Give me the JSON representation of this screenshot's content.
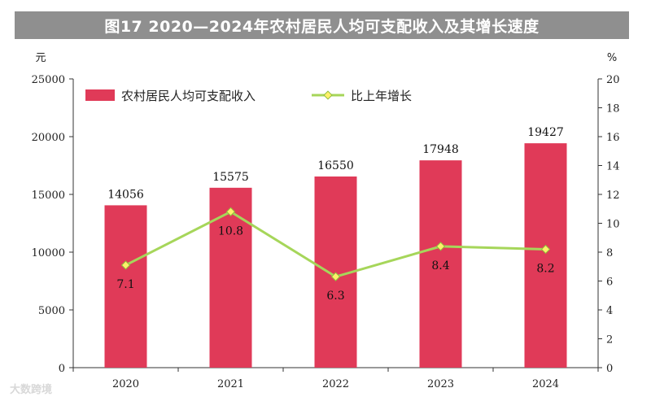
{
  "chart_data": {
    "type": "bar",
    "title": "图17  2020—2024年农村居民人均可支配收入及其增长速度",
    "categories": [
      "2020",
      "2021",
      "2022",
      "2023",
      "2024"
    ],
    "series": [
      {
        "name": "农村居民人均可支配收入",
        "type": "bar",
        "axis": "left",
        "values": [
          14056,
          15575,
          16550,
          17948,
          19427
        ]
      },
      {
        "name": "比上年增长",
        "type": "line",
        "axis": "right",
        "values": [
          7.1,
          10.8,
          6.3,
          8.4,
          8.2
        ]
      }
    ],
    "left_axis": {
      "unit": "元",
      "ylim": [
        0,
        25000
      ],
      "ticks": [
        0,
        5000,
        10000,
        15000,
        20000,
        25000
      ]
    },
    "right_axis": {
      "unit": "%",
      "ylim": [
        0,
        20
      ],
      "ticks": [
        0,
        2,
        4,
        6,
        8,
        10,
        12,
        14,
        16,
        18,
        20
      ]
    },
    "legend_position": "top-left",
    "grid": false
  },
  "colors": {
    "bar": "#e03a58",
    "line": "#a6d65a",
    "marker_fill": "#fff06a",
    "marker_stroke": "#8fbf3c",
    "title_bg": "#8f8f8f"
  },
  "watermark": "大数跨境"
}
